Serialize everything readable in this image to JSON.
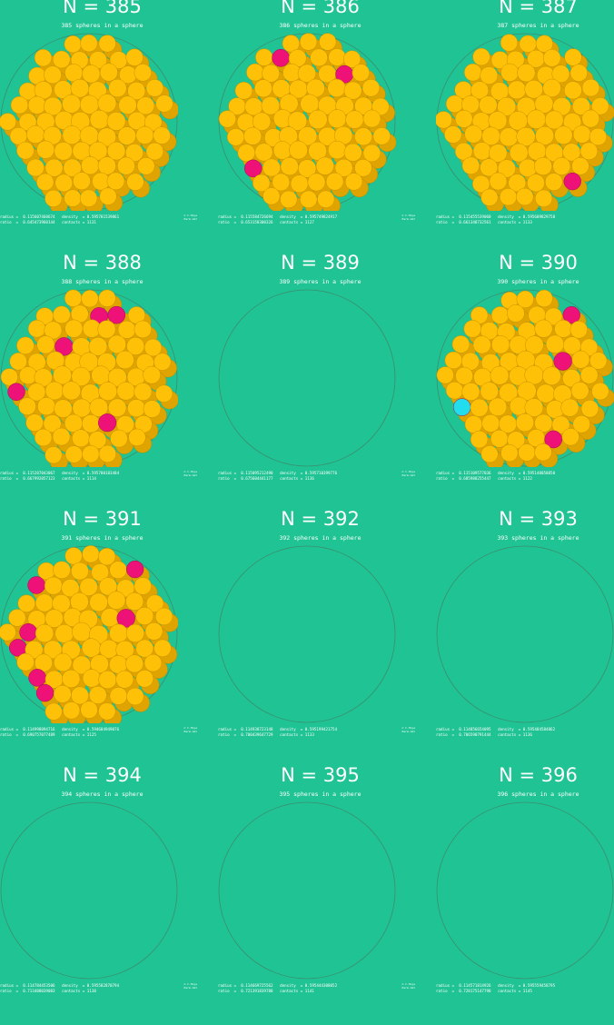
{
  "colors": {
    "background": "#20c393",
    "sphere": "#ffc107",
    "contact_few": "#ee1177",
    "contact_none": "#22ddee"
  },
  "panels": [
    {
      "n": 385,
      "title": "N = 385",
      "subtitle": "385 spheres in a sphere",
      "radius": "0.115607460674",
      "ratio": "0.645473960144",
      "density": "0.595781539861",
      "contacts": "1131",
      "credit": "© C.Hoye\nPerm.dat",
      "filled": true,
      "pink": 0,
      "cyan": 0
    },
    {
      "n": 386,
      "title": "N = 386",
      "subtitle": "386 spheres in a sphere",
      "radius": "0.115584726694",
      "ratio": "0.653158300326",
      "density": "0.595749824917",
      "contacts": "1127",
      "credit": "© C.Hoye\nPerm.dat",
      "filled": true,
      "pink": 3,
      "cyan": 0
    },
    {
      "n": 387,
      "title": "N = 387",
      "subtitle": "387 spheres in a sphere",
      "radius": "0.115455539060",
      "ratio": "0.661348732561",
      "density": "0.595609829758",
      "contacts": "1133",
      "credit": "© C.Hoye\nPerm.dat",
      "filled": true,
      "pink": 1,
      "cyan": 0
    },
    {
      "n": 388,
      "title": "N = 388",
      "subtitle": "388 spheres in a sphere",
      "radius": "0.115287043067",
      "ratio": "0.667992057123",
      "density": "0.595780183484",
      "contacts": "1114",
      "credit": "© C.Hoye\nPerm.dat",
      "filled": true,
      "pink": 5,
      "cyan": 0
    },
    {
      "n": 389,
      "title": "N = 389",
      "subtitle": "389 spheres in a sphere",
      "radius": "0.115095212490",
      "ratio": "0.675604441177",
      "density": "0.595710399776",
      "contacts": "1136",
      "credit": "© C.Hoye\nPerm.dat",
      "filled": false,
      "pink": 0,
      "cyan": 0
    },
    {
      "n": 390,
      "title": "N = 390",
      "subtitle": "390 spheres in a sphere",
      "radius": "0.115109577036",
      "ratio": "0.685988255447",
      "density": "0.595148058850",
      "contacts": "1122",
      "credit": "© C.Hoye\nPerm.dat",
      "filled": true,
      "pink": 3,
      "cyan": 1
    },
    {
      "n": 391,
      "title": "N = 391",
      "subtitle": "391 spheres in a sphere",
      "radius": "0.114998094716",
      "ratio": "0.690757077489",
      "density": "0.594684949076",
      "contacts": "1125",
      "credit": "© C.Hoye\nPerm.dat",
      "filled": true,
      "pink": 7,
      "cyan": 0
    },
    {
      "n": 392,
      "title": "N = 392",
      "subtitle": "392 spheres in a sphere",
      "radius": "0.114938723148",
      "ratio": "0.700439647729",
      "density": "0.595199421754",
      "contacts": "1133",
      "credit": "© C.Hoye\nPerm.dat",
      "filled": false,
      "pink": 0,
      "cyan": 0
    },
    {
      "n": 393,
      "title": "N = 393",
      "subtitle": "393 spheres in a sphere",
      "radius": "0.114856654095",
      "ratio": "0.706590791444",
      "density": "0.595484584862",
      "contacts": "1136",
      "credit": "© C.Hoye\nPerm.dat",
      "filled": false,
      "pink": 0,
      "cyan": 0
    },
    {
      "n": 394,
      "title": "N = 394",
      "subtitle": "394 spheres in a sphere",
      "radius": "0.114784453506",
      "ratio": "0.713488039083",
      "density": "0.595582870794",
      "contacts": "1138",
      "credit": "© C.Hoye\nPerm.dat",
      "filled": false,
      "pink": 0,
      "cyan": 0
    },
    {
      "n": 395,
      "title": "N = 395",
      "subtitle": "395 spheres in a sphere",
      "radius": "0.114669725562",
      "ratio": "0.721391839788",
      "density": "0.595444308052",
      "contacts": "1141",
      "credit": "© C.Hoye\nPerm.dat",
      "filled": false,
      "pink": 0,
      "cyan": 0
    },
    {
      "n": 396,
      "title": "N = 396",
      "subtitle": "396 spheres in a sphere",
      "radius": "0.114571814926",
      "ratio": "0.728175147798",
      "density": "0.595559458795",
      "contacts": "1145",
      "credit": "© C.Hoye\nPerm.dat",
      "filled": false,
      "pink": 0,
      "cyan": 0
    }
  ]
}
